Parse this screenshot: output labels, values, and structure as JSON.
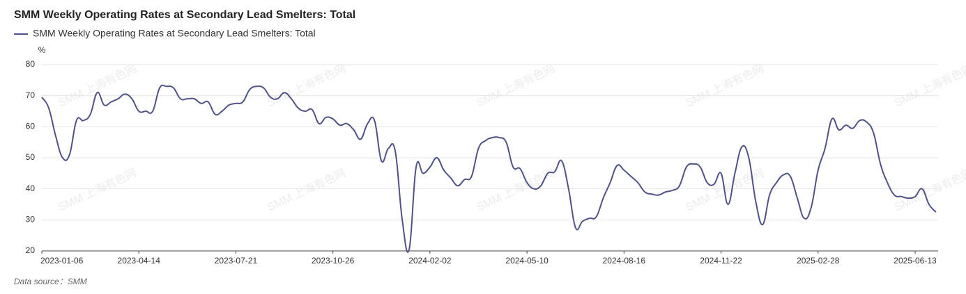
{
  "chart_data": {
    "type": "line",
    "title": "SMM Weekly Operating Rates at Secondary Lead Smelters: Total",
    "y_unit": "%",
    "source": "Data source：SMM",
    "watermark": "SMM 上海有色网",
    "categories": [
      "2023-01-06",
      null,
      null,
      null,
      null,
      null,
      null,
      null,
      null,
      null,
      null,
      null,
      null,
      null,
      "2023-04-14",
      null,
      null,
      null,
      null,
      null,
      null,
      null,
      null,
      null,
      null,
      null,
      null,
      null,
      "2023-07-21",
      null,
      null,
      null,
      null,
      null,
      null,
      null,
      null,
      null,
      null,
      null,
      null,
      null,
      "2023-10-26",
      null,
      null,
      null,
      null,
      null,
      null,
      null,
      null,
      null,
      null,
      null,
      null,
      null,
      "2024-02-02",
      null,
      null,
      null,
      null,
      null,
      null,
      null,
      null,
      null,
      null,
      null,
      null,
      null,
      "2024-05-10",
      null,
      null,
      null,
      null,
      null,
      null,
      null,
      null,
      null,
      null,
      null,
      null,
      null,
      "2024-08-16",
      null,
      null,
      null,
      null,
      null,
      null,
      null,
      null,
      null,
      null,
      null,
      null,
      null,
      "2024-11-22",
      null,
      null,
      null,
      null,
      null,
      null,
      null,
      null,
      null,
      null,
      null,
      null,
      null,
      "2025-02-28",
      null,
      null,
      null,
      null,
      null,
      null,
      null,
      null,
      null,
      null,
      null,
      null,
      null,
      "2025-06-13",
      null,
      null,
      null
    ],
    "series": [
      {
        "name": "SMM Weekly Operating Rates at Secondary Lead Smelters: Total",
        "color": "#4e5288",
        "values": [
          69.5,
          66,
          57,
          50,
          51,
          62,
          62,
          64,
          71,
          67,
          68,
          69,
          70.5,
          69,
          65,
          65,
          65,
          72.5,
          73,
          72.5,
          69,
          69,
          69,
          67.5,
          68,
          64,
          65,
          67,
          67.5,
          68,
          72,
          73,
          72.5,
          69.5,
          69,
          71,
          69,
          66,
          65,
          65.5,
          61,
          63,
          62.5,
          60.5,
          61,
          59,
          56,
          61,
          62,
          49,
          53,
          52,
          30,
          20.5,
          47,
          45,
          47,
          50,
          46,
          43.5,
          41,
          43,
          44,
          53,
          55.5,
          56.5,
          56.5,
          55,
          47,
          46.5,
          42,
          40,
          41,
          45,
          45.5,
          49,
          40,
          27.5,
          29.5,
          30.5,
          31,
          37,
          42,
          47.5,
          46,
          44,
          42,
          39,
          38.3,
          38,
          39,
          39.5,
          41,
          47,
          48,
          47,
          42,
          41.5,
          45,
          35,
          45,
          53.5,
          50,
          36,
          28.5,
          38,
          42,
          44.5,
          44,
          37,
          30.5,
          34,
          46,
          53,
          62.5,
          59,
          60.5,
          59.5,
          62,
          61.5,
          58,
          48,
          42,
          38,
          37.5,
          37,
          37.5,
          40,
          35,
          32.5
        ]
      }
    ],
    "ylim": [
      20,
      80
    ],
    "yticks": [
      20,
      30,
      40,
      50,
      60,
      70,
      80
    ],
    "grid": true
  }
}
